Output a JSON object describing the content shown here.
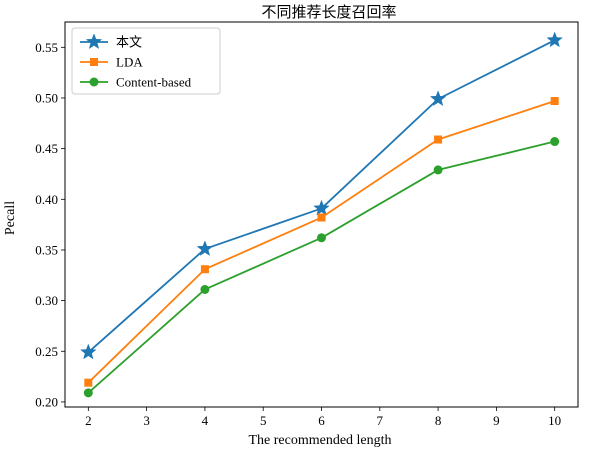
{
  "chart_data": {
    "type": "line",
    "title": "不同推荐长度召回率",
    "xlabel": "The recommended length",
    "ylabel": "Pecall",
    "x": [
      2,
      4,
      6,
      8,
      10
    ],
    "xlim": [
      1.6,
      10.4
    ],
    "ylim": [
      0.195,
      0.575
    ],
    "xticks": [
      "2",
      "3",
      "4",
      "5",
      "6",
      "7",
      "8",
      "9",
      "10"
    ],
    "yticks": [
      "0.20",
      "0.25",
      "0.30",
      "0.35",
      "0.40",
      "0.45",
      "0.50",
      "0.55"
    ],
    "grid": false,
    "legend_position": "top-left",
    "series": [
      {
        "name": "本文",
        "values": [
          0.249,
          0.351,
          0.391,
          0.499,
          0.557
        ],
        "color": "#1f77b4",
        "marker": "star"
      },
      {
        "name": "LDA",
        "values": [
          0.219,
          0.331,
          0.382,
          0.459,
          0.497
        ],
        "color": "#ff7f0e",
        "marker": "square"
      },
      {
        "name": "Content-based",
        "values": [
          0.209,
          0.311,
          0.362,
          0.429,
          0.457
        ],
        "color": "#2ca02c",
        "marker": "circle"
      }
    ]
  }
}
